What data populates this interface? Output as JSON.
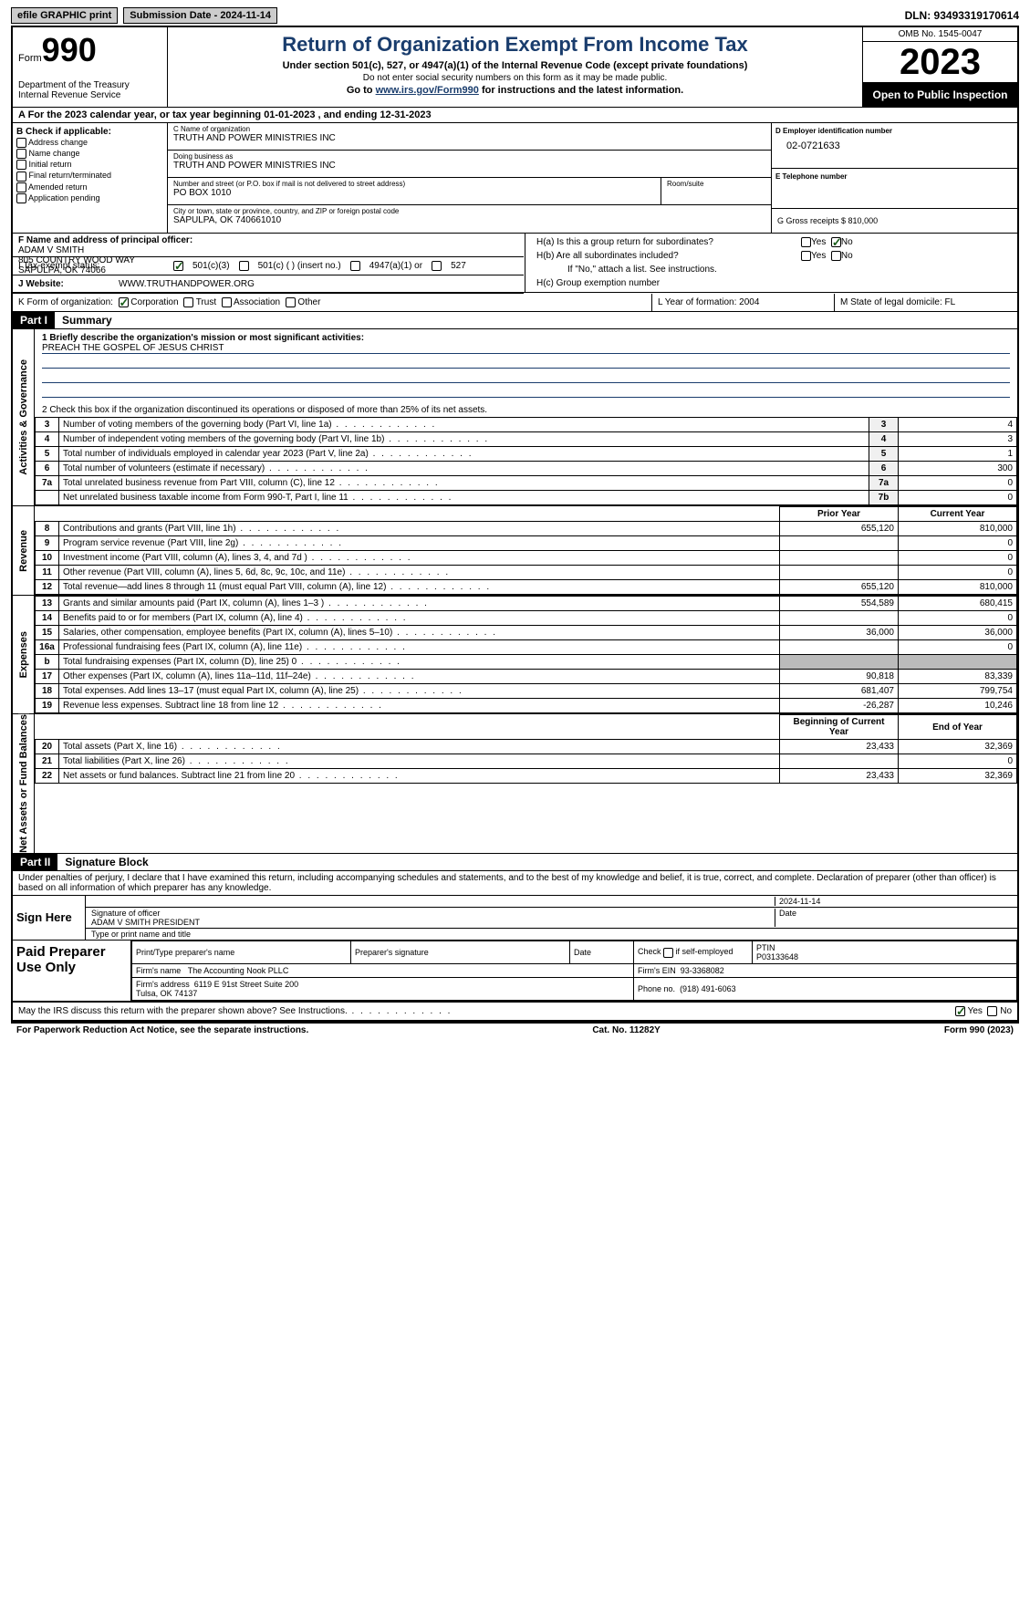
{
  "topbar": {
    "efile": "efile GRAPHIC print",
    "submission": "Submission Date - 2024-11-14",
    "dln": "DLN: 93493319170614"
  },
  "header": {
    "form_label": "Form",
    "form_num": "990",
    "dept": "Department of the Treasury\nInternal Revenue Service",
    "title": "Return of Organization Exempt From Income Tax",
    "subtitle": "Under section 501(c), 527, or 4947(a)(1) of the Internal Revenue Code (except private foundations)",
    "note": "Do not enter social security numbers on this form as it may be made public.",
    "goto_pre": "Go to ",
    "goto_link": "www.irs.gov/Form990",
    "goto_post": " for instructions and the latest information.",
    "omb": "OMB No. 1545-0047",
    "year": "2023",
    "inspection": "Open to Public Inspection"
  },
  "period": "A For the 2023 calendar year, or tax year beginning 01-01-2023   , and ending 12-31-2023",
  "box_b": {
    "title": "B Check if applicable:",
    "items": [
      "Address change",
      "Name change",
      "Initial return",
      "Final return/terminated",
      "Amended return",
      "Application pending"
    ]
  },
  "box_c": {
    "name_lbl": "C Name of organization",
    "name": "TRUTH AND POWER MINISTRIES INC",
    "dba_lbl": "Doing business as",
    "dba": "TRUTH AND POWER MINISTRIES INC",
    "addr_lbl": "Number and street (or P.O. box if mail is not delivered to street address)",
    "addr": "PO BOX 1010",
    "room_lbl": "Room/suite",
    "city_lbl": "City or town, state or province, country, and ZIP or foreign postal code",
    "city": "SAPULPA, OK  740661010"
  },
  "box_d": {
    "lbl": "D Employer identification number",
    "val": "02-0721633"
  },
  "box_e": {
    "lbl": "E Telephone number",
    "val": ""
  },
  "box_g": {
    "lbl": "G Gross receipts $",
    "val": "810,000"
  },
  "box_f": {
    "lbl": "F  Name and address of principal officer:",
    "name": "ADAM V SMITH",
    "addr1": "805 COUNTRY WOOD WAY",
    "addr2": "SAPULPA, OK  74066"
  },
  "box_h": {
    "a": "H(a)  Is this a group return for subordinates?",
    "b": "H(b)  Are all subordinates included?",
    "b_note": "If \"No,\" attach a list. See instructions.",
    "c": "H(c)  Group exemption number",
    "yes": "Yes",
    "no": "No"
  },
  "status": {
    "lbl": "I    Tax-exempt status:",
    "opts": [
      "501(c)(3)",
      "501(c) (  ) (insert no.)",
      "4947(a)(1) or",
      "527"
    ]
  },
  "website": {
    "lbl": "J   Website:",
    "val": "WWW.TRUTHANDPOWER.ORG"
  },
  "k_row": {
    "lbl": "K Form of organization:",
    "opts": [
      "Corporation",
      "Trust",
      "Association",
      "Other"
    ],
    "l": "L Year of formation: 2004",
    "m": "M State of legal domicile: FL"
  },
  "part1": {
    "num": "Part I",
    "title": "Summary"
  },
  "mission": {
    "lbl": "1   Briefly describe the organization's mission or most significant activities:",
    "text": "PREACH THE GOSPEL OF JESUS CHRIST"
  },
  "line2": "2    Check this box         if the organization discontinued its operations or disposed of more than 25% of its net assets.",
  "gov_lines": [
    {
      "n": "3",
      "d": "Number of voting members of the governing body (Part VI, line 1a)",
      "b": "3",
      "v": "4"
    },
    {
      "n": "4",
      "d": "Number of independent voting members of the governing body (Part VI, line 1b)",
      "b": "4",
      "v": "3"
    },
    {
      "n": "5",
      "d": "Total number of individuals employed in calendar year 2023 (Part V, line 2a)",
      "b": "5",
      "v": "1"
    },
    {
      "n": "6",
      "d": "Total number of volunteers (estimate if necessary)",
      "b": "6",
      "v": "300"
    },
    {
      "n": "7a",
      "d": "Total unrelated business revenue from Part VIII, column (C), line 12",
      "b": "7a",
      "v": "0"
    },
    {
      "n": "",
      "d": "Net unrelated business taxable income from Form 990-T, Part I, line 11",
      "b": "7b",
      "v": "0"
    }
  ],
  "col_headers": {
    "prior": "Prior Year",
    "current": "Current Year",
    "beg": "Beginning of Current Year",
    "end": "End of Year"
  },
  "revenue": [
    {
      "n": "8",
      "d": "Contributions and grants (Part VIII, line 1h)",
      "p": "655,120",
      "c": "810,000"
    },
    {
      "n": "9",
      "d": "Program service revenue (Part VIII, line 2g)",
      "p": "",
      "c": "0"
    },
    {
      "n": "10",
      "d": "Investment income (Part VIII, column (A), lines 3, 4, and 7d )",
      "p": "",
      "c": "0"
    },
    {
      "n": "11",
      "d": "Other revenue (Part VIII, column (A), lines 5, 6d, 8c, 9c, 10c, and 11e)",
      "p": "",
      "c": "0"
    },
    {
      "n": "12",
      "d": "Total revenue—add lines 8 through 11 (must equal Part VIII, column (A), line 12)",
      "p": "655,120",
      "c": "810,000"
    }
  ],
  "expenses": [
    {
      "n": "13",
      "d": "Grants and similar amounts paid (Part IX, column (A), lines 1–3 )",
      "p": "554,589",
      "c": "680,415"
    },
    {
      "n": "14",
      "d": "Benefits paid to or for members (Part IX, column (A), line 4)",
      "p": "",
      "c": "0"
    },
    {
      "n": "15",
      "d": "Salaries, other compensation, employee benefits (Part IX, column (A), lines 5–10)",
      "p": "36,000",
      "c": "36,000"
    },
    {
      "n": "16a",
      "d": "Professional fundraising fees (Part IX, column (A), line 11e)",
      "p": "",
      "c": "0"
    },
    {
      "n": "b",
      "d": "Total fundraising expenses (Part IX, column (D), line 25) 0",
      "p": "GRAY",
      "c": "GRAY"
    },
    {
      "n": "17",
      "d": "Other expenses (Part IX, column (A), lines 11a–11d, 11f–24e)",
      "p": "90,818",
      "c": "83,339"
    },
    {
      "n": "18",
      "d": "Total expenses. Add lines 13–17 (must equal Part IX, column (A), line 25)",
      "p": "681,407",
      "c": "799,754"
    },
    {
      "n": "19",
      "d": "Revenue less expenses. Subtract line 18 from line 12",
      "p": "-26,287",
      "c": "10,246"
    }
  ],
  "netassets": [
    {
      "n": "20",
      "d": "Total assets (Part X, line 16)",
      "p": "23,433",
      "c": "32,369"
    },
    {
      "n": "21",
      "d": "Total liabilities (Part X, line 26)",
      "p": "",
      "c": "0"
    },
    {
      "n": "22",
      "d": "Net assets or fund balances. Subtract line 21 from line 20",
      "p": "23,433",
      "c": "32,369"
    }
  ],
  "sides": {
    "gov": "Activities & Governance",
    "rev": "Revenue",
    "exp": "Expenses",
    "net": "Net Assets or Fund Balances"
  },
  "part2": {
    "num": "Part II",
    "title": "Signature Block"
  },
  "penalty": "Under penalties of perjury, I declare that I have examined this return, including accompanying schedules and statements, and to the best of my knowledge and belief, it is true, correct, and complete. Declaration of preparer (other than officer) is based on all information of which preparer has any knowledge.",
  "sign": {
    "lbl": "Sign Here",
    "date": "2024-11-14",
    "sig_lbl": "Signature of officer",
    "name": "ADAM V SMITH  PRESIDENT",
    "name_lbl": "Type or print name and title",
    "date_lbl": "Date"
  },
  "prep": {
    "lbl": "Paid Preparer Use Only",
    "h1": "Print/Type preparer's name",
    "h2": "Preparer's signature",
    "h3": "Date",
    "h4": "Check         if self-employed",
    "h5_lbl": "PTIN",
    "h5": "P03133648",
    "firm_lbl": "Firm's name",
    "firm": "The Accounting Nook PLLC",
    "ein_lbl": "Firm's EIN",
    "ein": "93-3368082",
    "addr_lbl": "Firm's address",
    "addr": "6119 E 91st Street Suite 200\nTulsa, OK  74137",
    "phone_lbl": "Phone no.",
    "phone": "(918) 491-6063"
  },
  "discuss": "May the IRS discuss this return with the preparer shown above? See Instructions.",
  "footer": {
    "left": "For Paperwork Reduction Act Notice, see the separate instructions.",
    "mid": "Cat. No. 11282Y",
    "right": "Form 990 (2023)"
  }
}
